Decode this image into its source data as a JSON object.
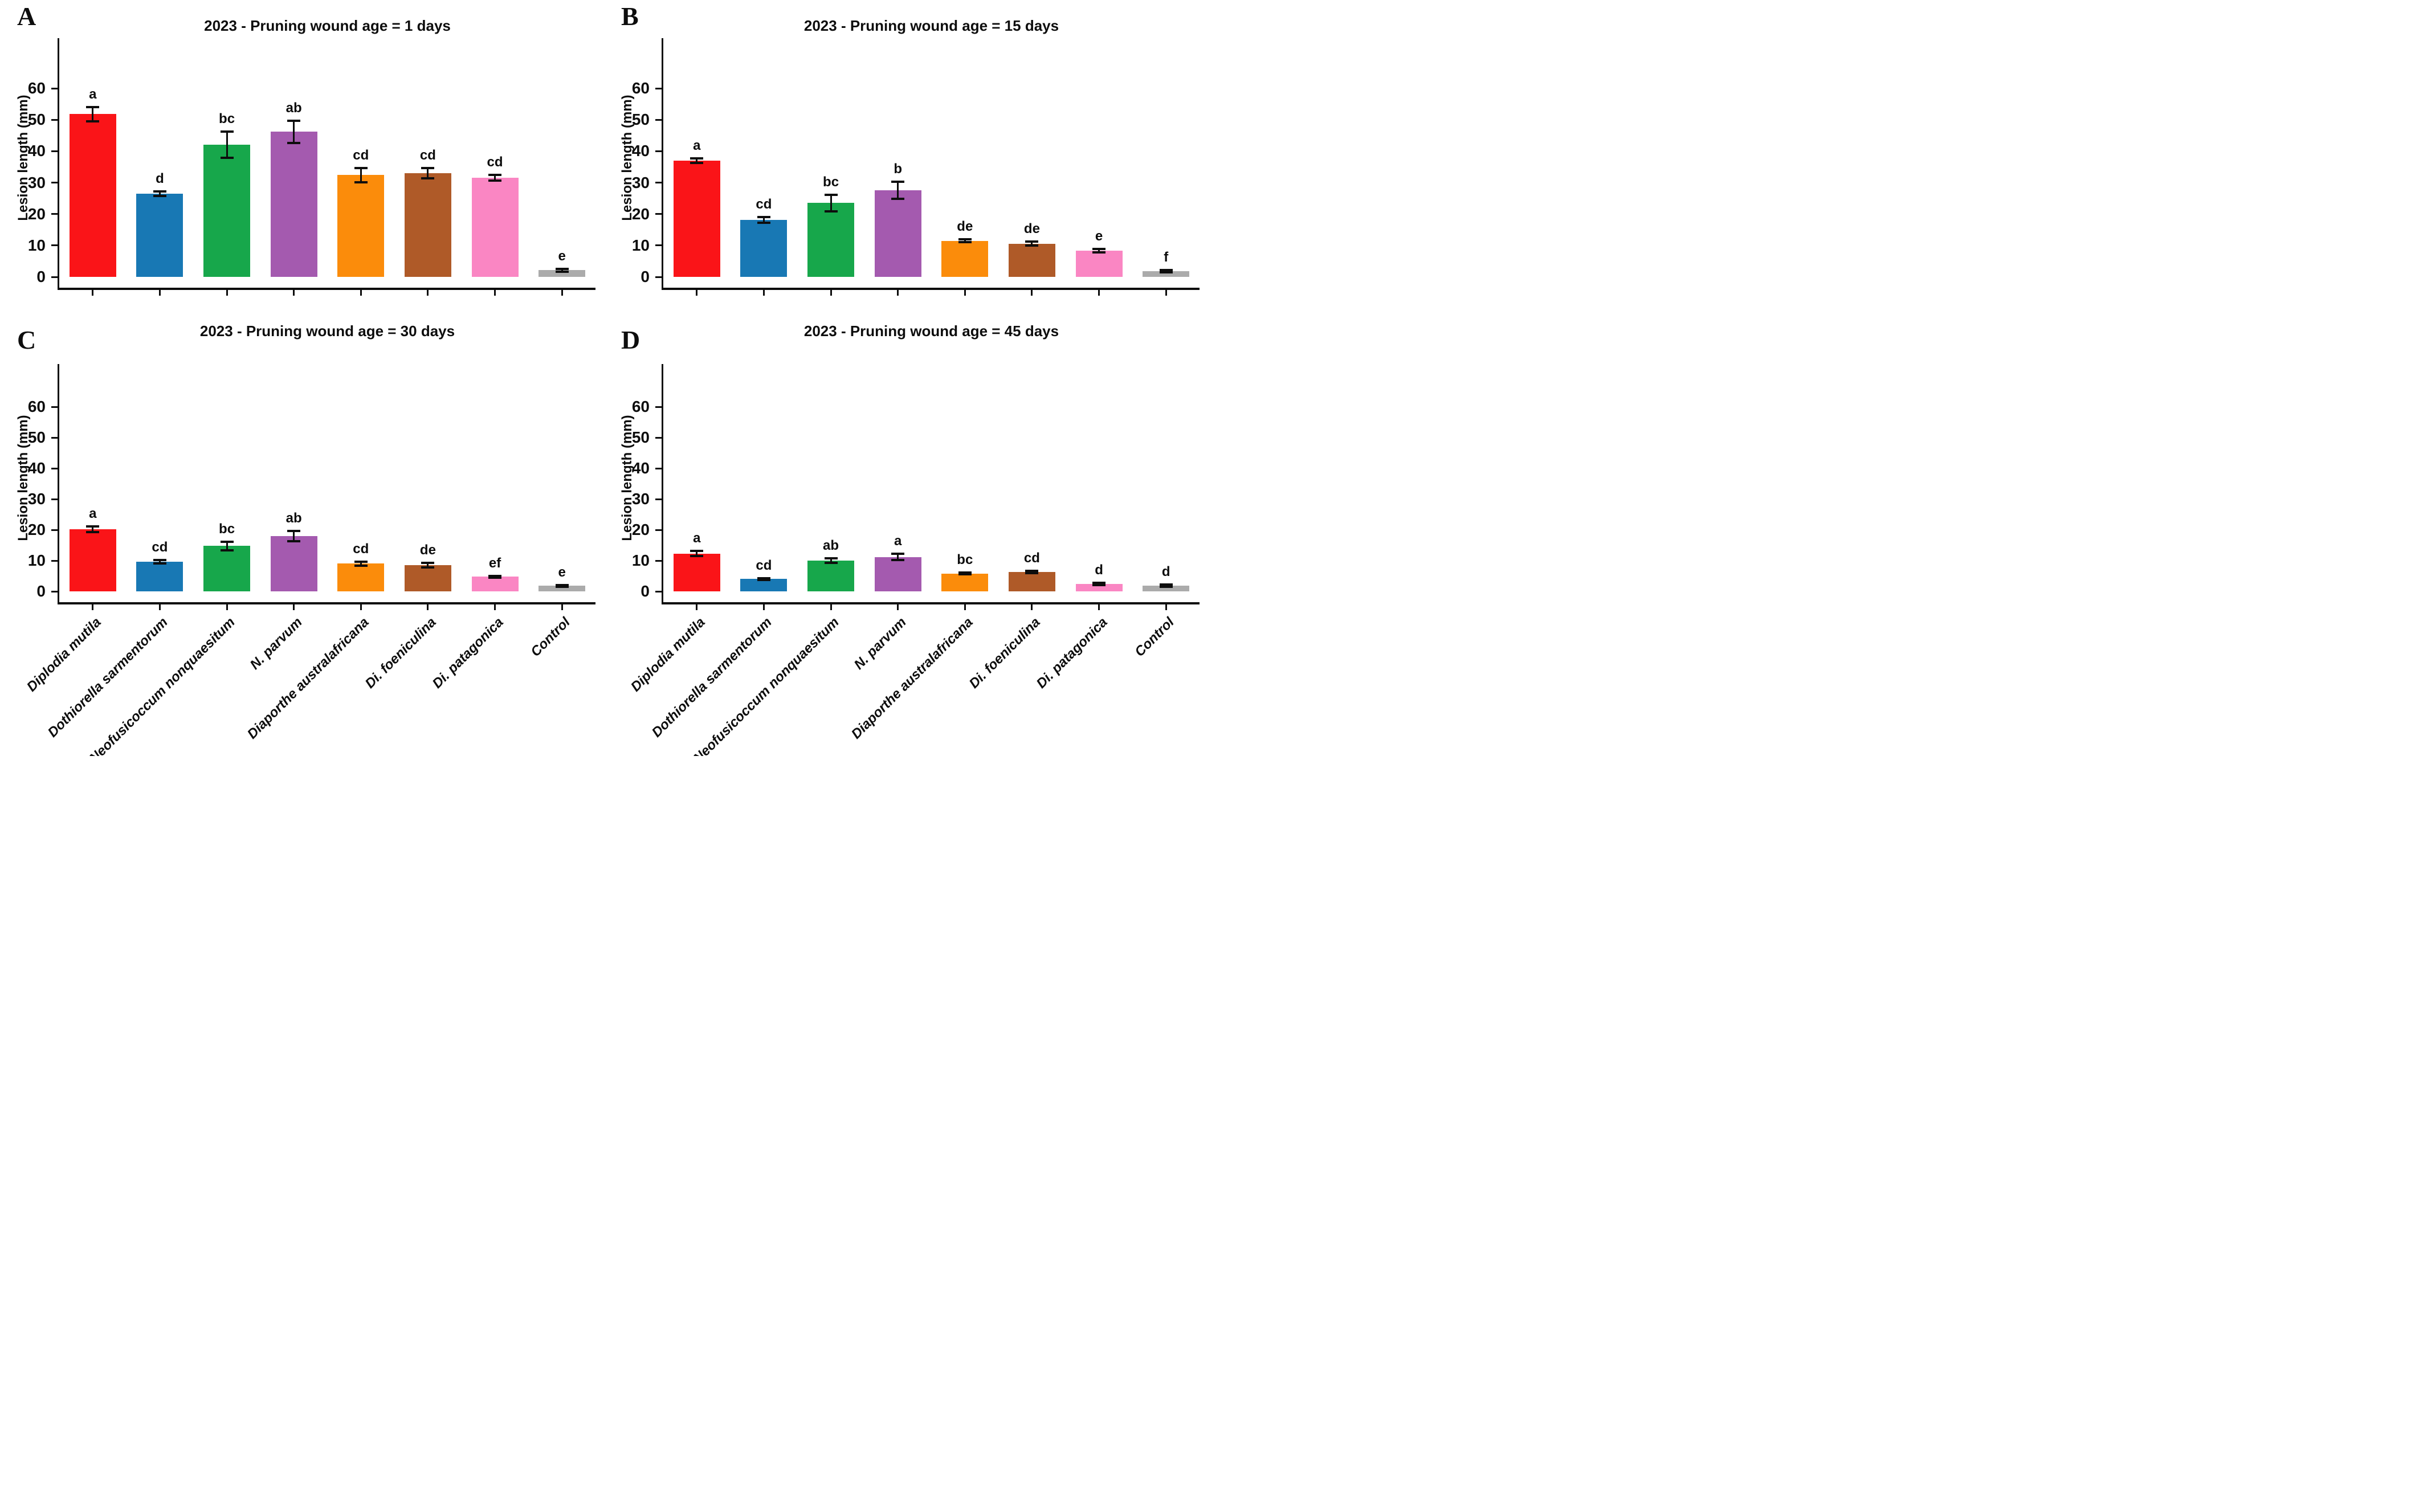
{
  "figure": {
    "ylabel": "Lesion length (mm)",
    "ink_color": "#0d0d0d",
    "background": "#ffffff",
    "categories": [
      "Diplodia mutila",
      "Dothiorella sarmentorum",
      "Neofusicoccum nonquaesitum",
      "N. parvum",
      "Diaporthe australafricana",
      "Di. foeniculina",
      "Di. patagonica",
      "Control"
    ],
    "bar_colors": [
      "#FA1418",
      "#1878B4",
      "#17A74B",
      "#A45AAF",
      "#FB8C0B",
      "#AF5A28",
      "#FA86C3",
      "#ABABAB"
    ],
    "yticks": [
      0,
      10,
      20,
      30,
      40,
      50,
      60
    ]
  },
  "chart_data": [
    {
      "type": "bar",
      "panel_letter": "A",
      "title": "2023 - Pruning wound age = 1 days",
      "ylabel": "Lesion length (mm)",
      "categories": [
        "Diplodia mutila",
        "Dothiorella sarmentorum",
        "Neofusicoccum nonquaesitum",
        "N. parvum",
        "Diaporthe australafricana",
        "Di. foeniculina",
        "Di. patagonica",
        "Control"
      ],
      "values": [
        51.8,
        26.5,
        42.1,
        46.2,
        32.4,
        33.0,
        31.5,
        2.1
      ],
      "errors": [
        2.3,
        0.7,
        4.1,
        3.5,
        2.2,
        1.6,
        0.9,
        0.4
      ],
      "sig_letters": [
        "a",
        "d",
        "bc",
        "ab",
        "cd",
        "cd",
        "cd",
        "e"
      ],
      "ylim": [
        0,
        76
      ],
      "yticks": [
        0,
        10,
        20,
        30,
        40,
        50,
        60
      ],
      "x_tick_labels_shown": false,
      "legend": "none",
      "grid": false
    },
    {
      "type": "bar",
      "panel_letter": "B",
      "title": "2023 - Pruning wound age = 15 days",
      "ylabel": "Lesion length (mm)",
      "categories": [
        "Diplodia mutila",
        "Dothiorella sarmentorum",
        "Neofusicoccum nonquaesitum",
        "N. parvum",
        "Diaporthe australafricana",
        "Di. foeniculina",
        "Di. patagonica",
        "Control"
      ],
      "values": [
        37.0,
        18.1,
        23.5,
        27.6,
        11.5,
        10.6,
        8.3,
        1.8
      ],
      "errors": [
        0.7,
        0.9,
        2.6,
        2.7,
        0.4,
        0.7,
        0.5,
        0.3
      ],
      "sig_letters": [
        "a",
        "cd",
        "bc",
        "b",
        "de",
        "de",
        "e",
        "f"
      ],
      "ylim": [
        0,
        76
      ],
      "yticks": [
        0,
        10,
        20,
        30,
        40,
        50,
        60
      ],
      "x_tick_labels_shown": false,
      "legend": "none",
      "grid": false
    },
    {
      "type": "bar",
      "panel_letter": "C",
      "title": "2023 - Pruning wound age = 30 days",
      "ylabel": "Lesion length (mm)",
      "categories": [
        "Diplodia mutila",
        "Dothiorella sarmentorum",
        "Neofusicoccum nonquaesitum",
        "N. parvum",
        "Diaporthe australafricana",
        "Di. foeniculina",
        "Di. patagonica",
        "Control"
      ],
      "values": [
        20.2,
        9.6,
        14.8,
        18.0,
        9.0,
        8.5,
        4.8,
        1.8
      ],
      "errors": [
        1.0,
        0.6,
        1.4,
        1.7,
        0.7,
        0.7,
        0.3,
        0.3
      ],
      "sig_letters": [
        "a",
        "cd",
        "bc",
        "ab",
        "cd",
        "de",
        "ef",
        "e"
      ],
      "ylim": [
        0,
        74
      ],
      "yticks": [
        0,
        10,
        20,
        30,
        40,
        50,
        60
      ],
      "x_tick_labels_shown": true,
      "legend": "none",
      "grid": false
    },
    {
      "type": "bar",
      "panel_letter": "D",
      "title": "2023 - Pruning wound age = 45 days",
      "ylabel": "Lesion length (mm)",
      "categories": [
        "Diplodia mutila",
        "Dothiorella sarmentorum",
        "Neofusicoccum nonquaesitum",
        "N. parvum",
        "Diaporthe australafricana",
        "Di. foeniculina",
        "Di. patagonica",
        "Control"
      ],
      "values": [
        12.3,
        4.0,
        10.0,
        11.2,
        5.8,
        6.3,
        2.4,
        1.8
      ],
      "errors": [
        0.8,
        0.3,
        0.8,
        1.0,
        0.3,
        0.4,
        0.3,
        0.4
      ],
      "sig_letters": [
        "a",
        "cd",
        "ab",
        "a",
        "bc",
        "cd",
        "d",
        "d"
      ],
      "ylim": [
        0,
        74
      ],
      "yticks": [
        0,
        10,
        20,
        30,
        40,
        50,
        60
      ],
      "x_tick_labels_shown": true,
      "legend": "none",
      "grid": false
    }
  ]
}
